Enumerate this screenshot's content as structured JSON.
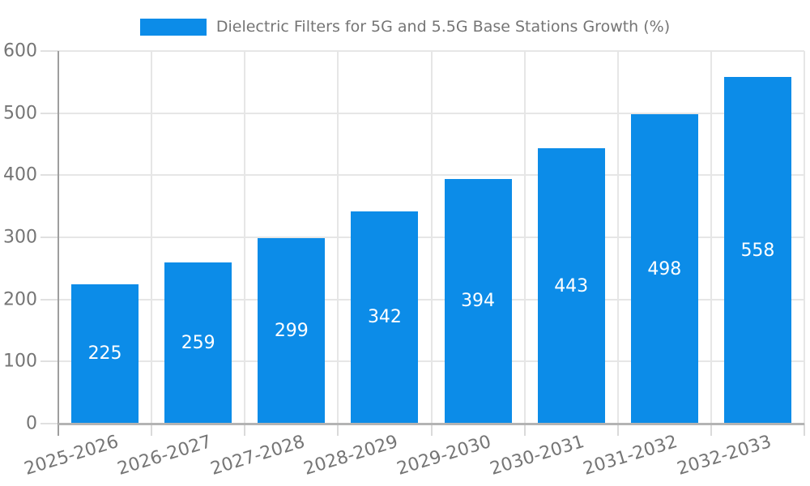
{
  "legend": {
    "label": "Dielectric Filters for 5G and 5.5G Base Stations Growth (%)",
    "swatch_color": "#0c8ce8"
  },
  "chart_data": {
    "type": "bar",
    "title": "Dielectric Filters for 5G and 5.5G Base Stations Growth (%)",
    "categories": [
      "2025-2026",
      "2026-2027",
      "2027-2028",
      "2028-2029",
      "2029-2030",
      "2030-2031",
      "2031-2032",
      "2032-2033"
    ],
    "series": [
      {
        "name": "Dielectric Filters for 5G and 5.5G Base Stations Growth (%)",
        "values": [
          225,
          259,
          299,
          342,
          394,
          443,
          498,
          558
        ]
      }
    ],
    "value_labels": [
      "225",
      "259",
      "299",
      "342",
      "394",
      "443",
      "498",
      "558"
    ],
    "xlabel": "",
    "ylabel": "",
    "ylim": [
      0,
      600
    ],
    "yticks": [
      0,
      100,
      200,
      300,
      400,
      500,
      600
    ],
    "grid": true,
    "legend_position": "top",
    "bar_color": "#0c8ce8",
    "value_label_color": "#ffffff"
  },
  "colors": {
    "bar": "#0c8ce8",
    "gridline": "#e6e6e6",
    "axis_y": "#9e9e9e",
    "axis_x": "#b3b3b3",
    "tick_label": "#757575",
    "legend_text": "#757575",
    "background": "#ffffff",
    "bar_value_text": "#ffffff"
  }
}
